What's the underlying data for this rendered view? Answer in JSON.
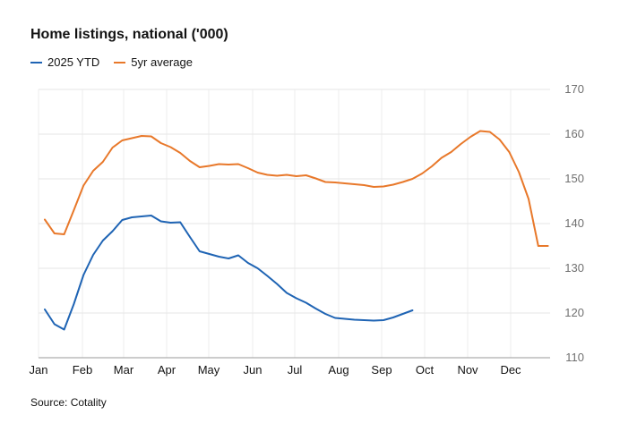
{
  "chart_data": {
    "type": "line",
    "title": "Home listings, national ('000)",
    "source": "Source: Cotality",
    "ylim": [
      110,
      170
    ],
    "yticks": [
      110,
      120,
      130,
      140,
      150,
      160,
      170
    ],
    "y_axis_position": "right",
    "grid": true,
    "legend_position": "top-left",
    "x_months": [
      "Jan",
      "Feb",
      "Mar",
      "Apr",
      "May",
      "Jun",
      "Jul",
      "Aug",
      "Sep",
      "Oct",
      "Nov",
      "Dec"
    ],
    "series": [
      {
        "name": "2025 YTD",
        "color": "#1f64b4",
        "x_week": [
          1,
          2,
          3,
          4,
          5,
          6,
          7,
          8,
          9,
          10,
          11,
          12,
          13,
          14,
          15,
          16,
          17,
          18,
          19,
          20,
          21,
          22,
          23,
          24,
          25,
          26,
          27,
          28,
          29,
          30,
          31,
          32,
          33,
          34,
          35,
          36,
          37,
          38,
          39
        ],
        "values": [
          120.8,
          117.5,
          116.3,
          122.0,
          128.5,
          133.0,
          136.2,
          138.3,
          140.8,
          141.4,
          141.6,
          141.8,
          140.5,
          140.2,
          140.3,
          137.0,
          133.8,
          133.2,
          132.6,
          132.2,
          132.9,
          131.2,
          130.0,
          128.3,
          126.5,
          124.5,
          123.3,
          122.3,
          121.0,
          119.8,
          118.9,
          118.7,
          118.5,
          118.4,
          118.3,
          118.4,
          119.0,
          119.8,
          120.6
        ]
      },
      {
        "name": "5yr average",
        "color": "#e8782a",
        "x_week": [
          1,
          2,
          3,
          4,
          5,
          6,
          7,
          8,
          9,
          10,
          11,
          12,
          13,
          14,
          15,
          16,
          17,
          18,
          19,
          20,
          21,
          22,
          23,
          24,
          25,
          26,
          27,
          28,
          29,
          30,
          31,
          32,
          33,
          34,
          35,
          36,
          37,
          38,
          39,
          40,
          41,
          42,
          43,
          44,
          45,
          46,
          47,
          48,
          49,
          50,
          51,
          52,
          53
        ],
        "values": [
          140.9,
          137.8,
          137.6,
          143.0,
          148.5,
          151.8,
          153.8,
          157.0,
          158.6,
          159.1,
          159.6,
          159.5,
          158.0,
          157.1,
          155.8,
          154.0,
          152.6,
          152.9,
          153.3,
          153.2,
          153.3,
          152.4,
          151.4,
          150.9,
          150.7,
          150.9,
          150.6,
          150.8,
          150.1,
          149.3,
          149.2,
          149.0,
          148.8,
          148.6,
          148.2,
          148.3,
          148.7,
          149.3,
          150.0,
          151.2,
          152.8,
          154.7,
          156.0,
          157.8,
          159.4,
          160.7,
          160.5,
          158.8,
          156.0,
          151.5,
          145.5,
          135.0,
          135.0
        ]
      }
    ]
  }
}
